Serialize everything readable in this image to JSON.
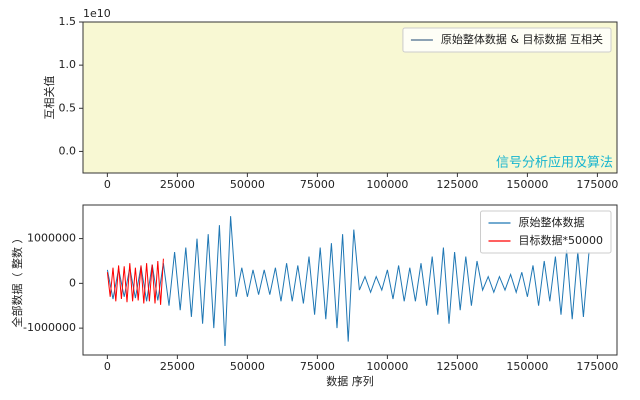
{
  "chart_data": [
    {
      "type": "line",
      "ylabel": "互相关值",
      "y_offset_label": "1e10",
      "facecolor": "#f8f8d3",
      "annotation": "信号分析应用及算法",
      "annotation_color": "#17b5cf",
      "legend": "upper right",
      "xlim": [
        -8700,
        182000
      ],
      "xticks": [
        0,
        25000,
        50000,
        75000,
        100000,
        125000,
        150000,
        175000
      ],
      "ylim": [
        -2500000000,
        15000000000
      ],
      "yticks": [
        {
          "value": 0,
          "label": "0.0"
        },
        {
          "value": 5000000000,
          "label": "0.5"
        },
        {
          "value": 10000000000,
          "label": "1.0"
        },
        {
          "value": 15000000000,
          "label": "1.5"
        }
      ],
      "series": [
        {
          "name": "原始整体数据 & 目标数据 互相关",
          "color": "#4a6b8c",
          "x": [],
          "values": []
        }
      ]
    },
    {
      "type": "line",
      "xlabel": "数据 序列",
      "ylabel": "全部数据（ 整数 ）",
      "facecolor": "#ffffff",
      "legend": "upper right",
      "xlim": [
        -8700,
        182000
      ],
      "xticks": [
        0,
        25000,
        50000,
        75000,
        100000,
        125000,
        150000,
        175000
      ],
      "ylim": [
        -1600000,
        1750000
      ],
      "yticks": [
        -1000000,
        0,
        1000000
      ],
      "series": [
        {
          "name": "原始整体数据",
          "color": "#1f77b4",
          "x": [
            0,
            2000,
            4000,
            6000,
            8000,
            10000,
            12000,
            14000,
            16000,
            18000,
            20000,
            22000,
            24000,
            26000,
            28000,
            30000,
            32000,
            34000,
            36000,
            38000,
            40000,
            42000,
            44000,
            46000,
            48000,
            50000,
            52000,
            54000,
            56000,
            58000,
            60000,
            62000,
            64000,
            66000,
            68000,
            70000,
            72000,
            74000,
            76000,
            78000,
            80000,
            82000,
            84000,
            86000,
            88000,
            90000,
            92000,
            94000,
            96000,
            98000,
            100000,
            102000,
            104000,
            106000,
            108000,
            110000,
            112000,
            114000,
            116000,
            118000,
            120000,
            122000,
            124000,
            126000,
            128000,
            130000,
            132000,
            134000,
            136000,
            138000,
            140000,
            142000,
            144000,
            146000,
            148000,
            150000,
            152000,
            154000,
            156000,
            158000,
            160000,
            162000,
            164000,
            166000,
            168000,
            170000,
            172000
          ],
          "values": [
            300000,
            -350000,
            320000,
            -300000,
            350000,
            -330000,
            380000,
            -400000,
            420000,
            -380000,
            450000,
            -500000,
            700000,
            -600000,
            800000,
            -750000,
            1000000,
            -900000,
            1100000,
            -1000000,
            1300000,
            -1400000,
            1500000,
            -300000,
            350000,
            -300000,
            300000,
            -250000,
            300000,
            -250000,
            350000,
            -400000,
            450000,
            -400000,
            400000,
            -450000,
            600000,
            -700000,
            800000,
            -800000,
            900000,
            -1000000,
            1100000,
            -1300000,
            1200000,
            -150000,
            150000,
            -200000,
            150000,
            -150000,
            300000,
            -350000,
            400000,
            -400000,
            350000,
            -400000,
            450000,
            -500000,
            600000,
            -700000,
            800000,
            -900000,
            700000,
            -600000,
            600000,
            -500000,
            500000,
            -150000,
            150000,
            -200000,
            150000,
            -150000,
            200000,
            -200000,
            250000,
            -300000,
            400000,
            -500000,
            500000,
            -400000,
            600000,
            -700000,
            750000,
            -800000,
            700000,
            -750000,
            700000
          ]
        },
        {
          "name": "目标数据*50000",
          "color": "#ff0000",
          "x": [
            0,
            1000,
            2000,
            3000,
            4000,
            5000,
            6000,
            7000,
            8000,
            9000,
            10000,
            11000,
            12000,
            13000,
            14000,
            15000,
            16000,
            17000,
            18000,
            19000,
            20000
          ],
          "values": [
            250000,
            -300000,
            350000,
            -400000,
            400000,
            -350000,
            380000,
            -420000,
            450000,
            -400000,
            350000,
            -380000,
            400000,
            -450000,
            450000,
            -400000,
            420000,
            -450000,
            500000,
            -480000,
            550000
          ]
        }
      ]
    }
  ]
}
